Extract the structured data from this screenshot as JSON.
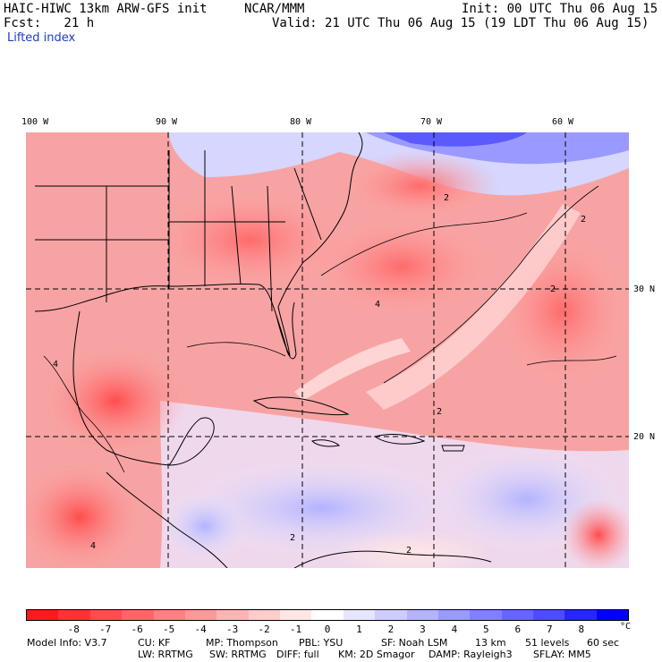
{
  "header": {
    "model_line": "HAIC-HIWC 13km ARW-GFS init",
    "org": "NCAR/MMM",
    "init": "Init: 00 UTC Thu 06 Aug 15",
    "fcst": "Fcst:   21 h",
    "valid": "Valid: 21 UTC Thu 06 Aug 15 (19 LDT Thu 06 Aug 15)",
    "field": "Lifted index"
  },
  "axes": {
    "lon_labels": [
      "100 W",
      "90 W",
      "80 W",
      "70 W",
      "60 W"
    ],
    "lat_labels": [
      "30 N",
      "20 N"
    ]
  },
  "colorbar": {
    "labels": [
      "-8",
      "-7",
      "-6",
      "-5",
      "-4",
      "-3",
      "-2",
      "-1",
      "0",
      "1",
      "2",
      "3",
      "4",
      "5",
      "6",
      "7",
      "8"
    ],
    "unit": "°C",
    "colors": [
      "#ff1a1a",
      "#ff3333",
      "#ff4d4d",
      "#ff6666",
      "#ff8080",
      "#ff9999",
      "#ffb3b3",
      "#ffcccc",
      "#ffe6e6",
      "#ffffff",
      "#e6e6ff",
      "#ccccff",
      "#b3b3ff",
      "#9999ff",
      "#8080ff",
      "#6666ff",
      "#4d4dff",
      "#2626ff",
      "#0000ff"
    ]
  },
  "footer": {
    "line1": [
      "Model Info: V3.7",
      "CU: KF",
      "MP: Thompson",
      "PBL: YSU",
      "SF: Noah LSM",
      "13 km",
      "51 levels",
      "60 sec"
    ],
    "line2": [
      "LW: RRTMG",
      "SW: RRTMG",
      "DIFF: full",
      "KM: 2D Smagor",
      "DAMP: Rayleigh3",
      "SFLAY: MM5"
    ]
  },
  "map": {
    "contour_labels": [
      "2",
      "2",
      "2",
      "4",
      "4",
      "2",
      "2",
      "2",
      "4"
    ]
  }
}
